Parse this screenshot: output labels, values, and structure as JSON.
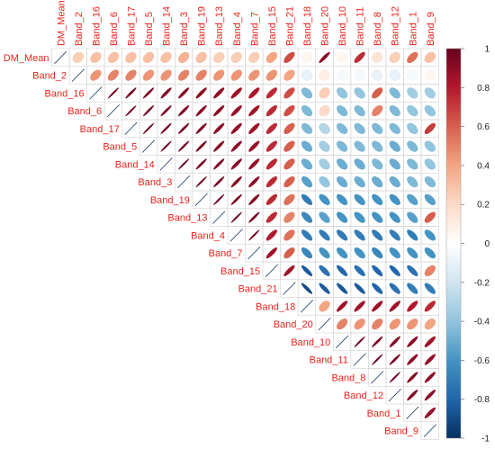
{
  "chart_data": {
    "type": "heatmap",
    "method": "ellipse",
    "layout": "upper-triangle",
    "variables": [
      "DM_Mean",
      "Band_2",
      "Band_16",
      "Band_6",
      "Band_17",
      "Band_5",
      "Band_14",
      "Band_3",
      "Band_19",
      "Band_13",
      "Band_4",
      "Band_7",
      "Band_15",
      "Band_21",
      "Band_18",
      "Band_20",
      "Band_10",
      "Band_11",
      "Band_8",
      "Band_12",
      "Band_1",
      "Band_9"
    ],
    "matrix": [
      [
        1,
        0.25,
        0.3,
        0.3,
        0.3,
        0.3,
        0.3,
        0.35,
        0.3,
        0.25,
        0.25,
        0.25,
        0.4,
        0.65,
        0.05,
        0.9,
        0.05,
        0.75,
        0.15,
        0.25,
        0.55,
        0.3
      ],
      [
        0.25,
        1,
        0.45,
        0.5,
        0.5,
        0.45,
        0.45,
        0.5,
        0.5,
        0.45,
        0.45,
        0.45,
        0.45,
        0.4,
        -0.1,
        0.1,
        -0.05,
        -0.05,
        -0.1,
        -0.1,
        -0.05,
        0.05
      ],
      [
        0.3,
        0.45,
        1,
        0.97,
        0.95,
        0.95,
        0.92,
        0.92,
        0.9,
        0.88,
        0.85,
        0.82,
        0.75,
        0.65,
        -0.45,
        0.25,
        -0.4,
        -0.4,
        0.6,
        -0.45,
        -0.35,
        -0.35
      ],
      [
        0.3,
        0.5,
        0.97,
        1,
        0.97,
        0.96,
        0.95,
        0.93,
        0.92,
        0.9,
        0.87,
        0.85,
        0.75,
        0.65,
        -0.45,
        0.2,
        -0.45,
        -0.45,
        0.5,
        -0.45,
        -0.4,
        -0.4
      ],
      [
        0.3,
        0.5,
        0.95,
        0.97,
        1,
        0.97,
        0.96,
        0.95,
        0.93,
        0.9,
        0.88,
        0.85,
        0.75,
        0.6,
        -0.45,
        -0.3,
        -0.45,
        -0.45,
        -0.45,
        -0.45,
        -0.4,
        0.7
      ],
      [
        0.3,
        0.45,
        0.95,
        0.96,
        0.97,
        1,
        0.97,
        0.96,
        0.94,
        0.92,
        0.9,
        0.87,
        0.75,
        0.6,
        -0.5,
        -0.35,
        -0.45,
        -0.45,
        -0.45,
        -0.5,
        -0.45,
        -0.4
      ],
      [
        0.3,
        0.45,
        0.92,
        0.95,
        0.96,
        0.97,
        1,
        0.97,
        0.95,
        0.93,
        0.9,
        0.88,
        0.75,
        0.6,
        -0.5,
        -0.35,
        -0.5,
        -0.5,
        -0.45,
        -0.5,
        -0.45,
        -0.4
      ],
      [
        0.35,
        0.5,
        0.92,
        0.93,
        0.95,
        0.96,
        0.97,
        1,
        0.97,
        0.95,
        0.92,
        0.9,
        0.75,
        0.6,
        -0.55,
        -0.4,
        -0.5,
        -0.5,
        -0.5,
        -0.5,
        -0.45,
        -0.45
      ],
      [
        0.3,
        0.5,
        0.9,
        0.92,
        0.93,
        0.94,
        0.95,
        0.97,
        1,
        0.97,
        0.95,
        0.92,
        0.75,
        0.55,
        -0.7,
        -0.6,
        -0.6,
        -0.6,
        -0.6,
        -0.6,
        -0.55,
        -0.55
      ],
      [
        0.25,
        0.45,
        0.88,
        0.9,
        0.9,
        0.92,
        0.93,
        0.95,
        0.97,
        1,
        0.97,
        0.95,
        0.75,
        0.5,
        -0.65,
        -0.55,
        -0.6,
        -0.6,
        -0.6,
        -0.6,
        -0.55,
        0.6
      ],
      [
        0.25,
        0.45,
        0.85,
        0.87,
        0.88,
        0.9,
        0.9,
        0.92,
        0.95,
        0.97,
        1,
        0.97,
        0.8,
        0.55,
        -0.7,
        -0.7,
        -0.7,
        -0.7,
        -0.7,
        -0.7,
        -0.7,
        -0.6
      ],
      [
        0.25,
        0.45,
        0.82,
        0.85,
        0.85,
        0.87,
        0.88,
        0.9,
        0.92,
        0.95,
        0.97,
        1,
        0.85,
        0.6,
        -0.65,
        -0.6,
        -0.6,
        -0.6,
        -0.65,
        -0.6,
        -0.6,
        -0.6
      ],
      [
        0.4,
        0.45,
        0.75,
        0.75,
        0.75,
        0.75,
        0.75,
        0.75,
        0.75,
        0.75,
        0.8,
        0.85,
        1,
        0.85,
        -0.85,
        -0.75,
        -0.8,
        -0.75,
        -0.8,
        -0.8,
        -0.75,
        0.5
      ],
      [
        0.65,
        0.4,
        0.65,
        0.65,
        0.6,
        0.6,
        0.6,
        0.6,
        0.55,
        0.5,
        0.55,
        0.6,
        0.85,
        1,
        -0.9,
        -0.85,
        -0.85,
        -0.85,
        -0.8,
        -0.75,
        -0.7,
        -0.7
      ],
      [
        0.05,
        -0.1,
        -0.45,
        -0.45,
        -0.45,
        -0.5,
        -0.5,
        -0.55,
        -0.7,
        -0.65,
        -0.7,
        -0.65,
        -0.85,
        -0.9,
        1,
        0.4,
        0.85,
        0.85,
        0.85,
        0.85,
        0.8,
        0.75
      ],
      [
        0.9,
        0.1,
        0.25,
        0.2,
        -0.3,
        -0.35,
        -0.35,
        -0.4,
        -0.6,
        -0.55,
        -0.7,
        -0.6,
        -0.75,
        -0.85,
        0.4,
        1,
        0.5,
        0.45,
        0.5,
        0.45,
        0.45,
        0.4
      ],
      [
        0.05,
        -0.05,
        -0.4,
        -0.45,
        -0.45,
        -0.45,
        -0.5,
        -0.5,
        -0.6,
        -0.6,
        -0.7,
        -0.6,
        -0.8,
        -0.85,
        0.85,
        0.5,
        1,
        0.97,
        0.95,
        0.92,
        0.9,
        0.85
      ],
      [
        0.75,
        -0.05,
        -0.4,
        -0.45,
        -0.45,
        -0.45,
        -0.5,
        -0.5,
        -0.6,
        -0.6,
        -0.7,
        -0.6,
        -0.75,
        -0.85,
        0.85,
        0.45,
        0.97,
        1,
        0.97,
        0.95,
        0.9,
        0.88
      ],
      [
        0.15,
        -0.1,
        0.6,
        0.5,
        -0.45,
        -0.45,
        -0.45,
        -0.5,
        -0.6,
        -0.6,
        -0.7,
        -0.65,
        -0.8,
        -0.8,
        0.85,
        0.5,
        0.95,
        0.97,
        1,
        0.97,
        0.92,
        0.9
      ],
      [
        0.25,
        -0.1,
        -0.45,
        -0.45,
        -0.45,
        -0.5,
        -0.5,
        -0.5,
        -0.6,
        -0.6,
        -0.7,
        -0.6,
        -0.8,
        -0.75,
        0.85,
        0.45,
        0.92,
        0.95,
        0.97,
        1,
        0.92,
        0.9
      ],
      [
        0.55,
        -0.05,
        -0.35,
        -0.4,
        -0.4,
        -0.45,
        -0.45,
        -0.45,
        -0.55,
        -0.55,
        -0.7,
        -0.6,
        -0.75,
        -0.7,
        0.8,
        0.45,
        0.9,
        0.9,
        0.92,
        0.92,
        1,
        0.88
      ],
      [
        0.3,
        0.05,
        -0.35,
        -0.4,
        0.7,
        -0.4,
        -0.4,
        -0.45,
        -0.55,
        0.6,
        -0.6,
        -0.6,
        0.5,
        -0.7,
        0.75,
        0.4,
        0.85,
        0.88,
        0.9,
        0.9,
        0.88,
        1
      ]
    ],
    "colorbar": {
      "range": [
        -1,
        1
      ],
      "ticks": [
        "1",
        "0.8",
        "0.6",
        "0.4",
        "0.2",
        "0",
        "-0.2",
        "-0.4",
        "-0.6",
        "-0.8",
        "-1"
      ],
      "colors": [
        "#67001f",
        "#b2182b",
        "#d6604d",
        "#f4a582",
        "#fddbc7",
        "#ffffff",
        "#d1e5f0",
        "#92c5de",
        "#4393c3",
        "#2166ac",
        "#053061"
      ]
    },
    "label_color": "#e8241e",
    "title": "",
    "xlabel": "",
    "ylabel": ""
  }
}
